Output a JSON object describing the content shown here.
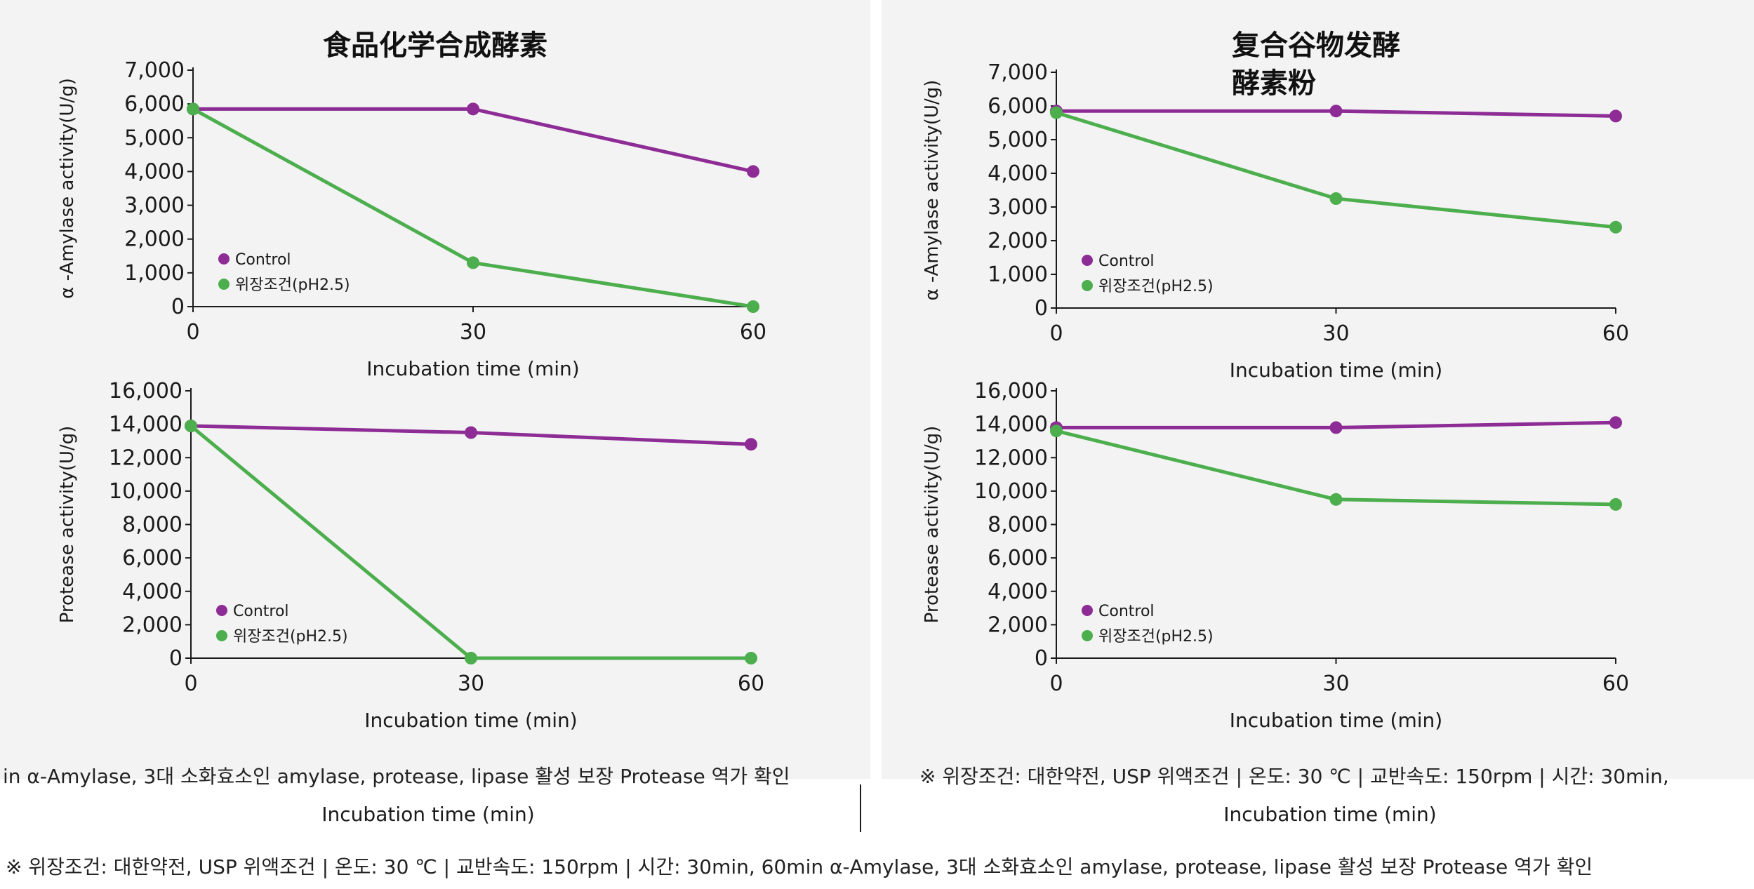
{
  "colors": {
    "control": "#8e2c96",
    "gastric": "#4cae4c",
    "axis": "#1a1a1a",
    "panel_bg": "#f3f3f4"
  },
  "panels": [
    {
      "title_lines": [
        "食品化学合成酵素"
      ]
    },
    {
      "title_lines": [
        "复合谷物发酵",
        "酵素粉"
      ]
    }
  ],
  "chart_data": [
    {
      "type": "line",
      "title": "食品化学合成酵素",
      "xlabel": "Incubation time (min)",
      "ylabel": "α -Amylase activity(U/g)",
      "x": [
        0,
        30,
        60
      ],
      "xticks": [
        "0",
        "30",
        "60"
      ],
      "ylim": [
        0,
        7000
      ],
      "yticks": [
        "0",
        "1,000",
        "2,000",
        "3,000",
        "4,000",
        "5,000",
        "6,000",
        "7,000"
      ],
      "legend": "lower-left",
      "series": [
        {
          "name": "Control",
          "values": [
            5850,
            5850,
            4000
          ]
        },
        {
          "name": "위장조건(pH2.5)",
          "values": [
            5850,
            1300,
            0
          ]
        }
      ]
    },
    {
      "type": "line",
      "title": "复合谷物发酵酵素粉",
      "xlabel": "Incubation time (min)",
      "ylabel": "α -Amylase activity(U/g)",
      "x": [
        0,
        30,
        60
      ],
      "xticks": [
        "0",
        "30",
        "60"
      ],
      "ylim": [
        0,
        7000
      ],
      "yticks": [
        "0",
        "1,000",
        "2,000",
        "3,000",
        "4,000",
        "5,000",
        "6,000",
        "7,000"
      ],
      "legend": "lower-left",
      "series": [
        {
          "name": "Control",
          "values": [
            5850,
            5850,
            5700
          ]
        },
        {
          "name": "위장조건(pH2.5)",
          "values": [
            5800,
            3250,
            2400
          ]
        }
      ]
    },
    {
      "type": "line",
      "title": "",
      "xlabel": "Incubation time (min)",
      "ylabel": "Protease activity(U/g)",
      "x": [
        0,
        30,
        60
      ],
      "xticks": [
        "0",
        "30",
        "60"
      ],
      "ylim": [
        0,
        16000
      ],
      "yticks": [
        "0",
        "2,000",
        "4,000",
        "6,000",
        "8,000",
        "10,000",
        "12,000",
        "14,000",
        "16,000"
      ],
      "legend": "lower-left",
      "series": [
        {
          "name": "Control",
          "values": [
            13900,
            13500,
            12800
          ]
        },
        {
          "name": "위장조건(pH2.5)",
          "values": [
            13900,
            0,
            0
          ]
        }
      ]
    },
    {
      "type": "line",
      "title": "",
      "xlabel": "Incubation time (min)",
      "ylabel": "Protease activity(U/g)",
      "x": [
        0,
        30,
        60
      ],
      "xticks": [
        "0",
        "30",
        "60"
      ],
      "ylim": [
        0,
        16000
      ],
      "yticks": [
        "0",
        "2,000",
        "4,000",
        "6,000",
        "8,000",
        "10,000",
        "12,000",
        "14,000",
        "16,000"
      ],
      "legend": "lower-left",
      "series": [
        {
          "name": "Control",
          "values": [
            13800,
            13800,
            14100
          ]
        },
        {
          "name": "위장조건(pH2.5)",
          "values": [
            13600,
            9500,
            9200
          ]
        }
      ]
    }
  ],
  "footnotes": {
    "left_fragment": "in α-Amylase, 3대 소화효소인 amylase, protease, lipase 활성 보장 Protease 역가 확인",
    "right_fragment": "※ 위장조건: 대한약전, USP 위액조건 | 온도: 30 ℃ | 교반속도: 150rpm | 시간: 30min,",
    "bottom_left_xlabel": "Incubation time (min)",
    "bottom_right_xlabel": "Incubation time (min)",
    "bottom_note": "※ 위장조건: 대한약전, USP 위액조건 | 온도: 30 ℃ | 교반속도: 150rpm | 시간: 30min, 60min α-Amylase, 3대 소화효소인 amylase, protease, lipase 활성 보장 Protease 역가 확인"
  }
}
